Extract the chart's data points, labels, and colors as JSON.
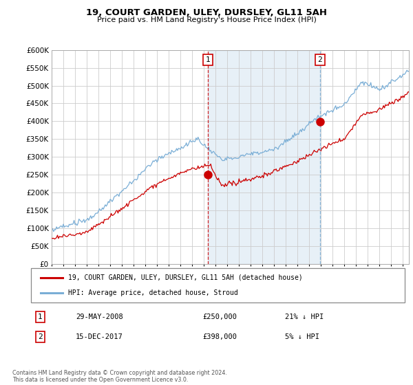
{
  "title": "19, COURT GARDEN, ULEY, DURSLEY, GL11 5AH",
  "subtitle": "Price paid vs. HM Land Registry's House Price Index (HPI)",
  "yticks": [
    0,
    50000,
    100000,
    150000,
    200000,
    250000,
    300000,
    350000,
    400000,
    450000,
    500000,
    550000,
    600000
  ],
  "ylim": [
    0,
    600000
  ],
  "legend_entry1": "19, COURT GARDEN, ULEY, DURSLEY, GL11 5AH (detached house)",
  "legend_entry2": "HPI: Average price, detached house, Stroud",
  "sale1_date": "29-MAY-2008",
  "sale1_price": 250000,
  "sale1_pct": "21% ↓ HPI",
  "sale2_date": "15-DEC-2017",
  "sale2_price": 398000,
  "sale2_pct": "5% ↓ HPI",
  "footer": "Contains HM Land Registry data © Crown copyright and database right 2024.\nThis data is licensed under the Open Government Licence v3.0.",
  "hpi_color": "#7aaed6",
  "price_color": "#cc0000",
  "vline1_color": "#cc0000",
  "vline2_color": "#7aaed6",
  "fill_color": "#ddeeff",
  "background_color": "#ffffff",
  "grid_color": "#cccccc"
}
